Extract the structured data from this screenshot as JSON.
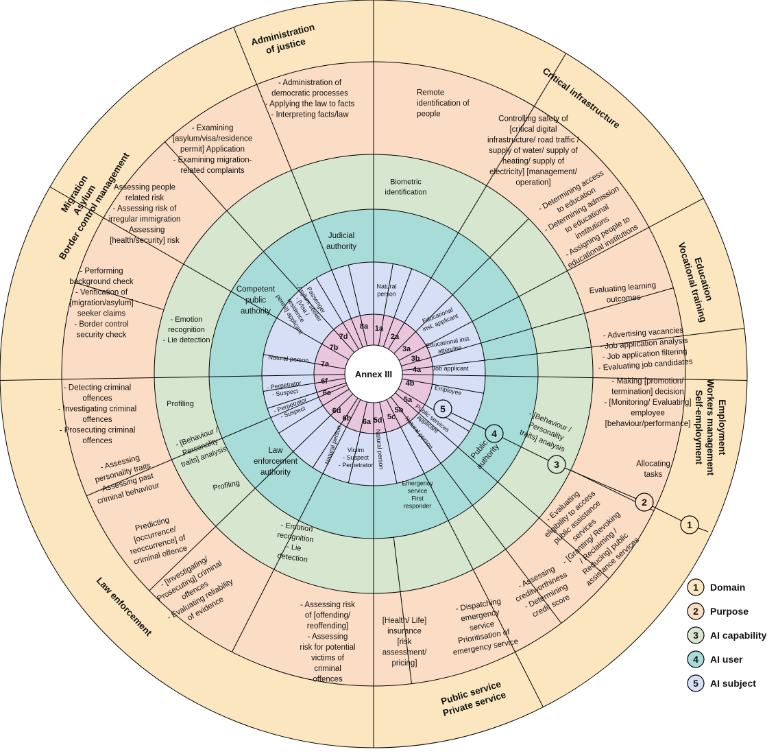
{
  "center": {
    "label": "Annex III"
  },
  "colors": {
    "domain_ring": "#fbe6bf",
    "purpose_ring": "#fbdcc4",
    "capability_ring": "#d7e6cf",
    "user_ring": "#a8dcd9",
    "subject_ring": "#d6dff5",
    "code_ring": "#e9c6dd",
    "line": "#000000"
  },
  "domains": [
    {
      "id": "justice",
      "lines": [
        "Administration",
        "of justice"
      ]
    },
    {
      "id": "critical",
      "lines": [
        "Critical infrastructure"
      ]
    },
    {
      "id": "education",
      "lines": [
        "Education",
        "Vocational training"
      ]
    },
    {
      "id": "employment",
      "lines": [
        "Employment",
        "Workers management",
        "Self-employment"
      ]
    },
    {
      "id": "public",
      "lines": [
        "Public service",
        "Private service"
      ]
    },
    {
      "id": "law",
      "lines": [
        "Law enforcement"
      ]
    },
    {
      "id": "migration",
      "lines": [
        "Migration",
        "Asylum",
        "Border control management"
      ]
    }
  ],
  "purposes": [
    {
      "id": "justice",
      "lines": [
        "- Administration of",
        "democratic processes",
        "- Applying the law to facts",
        "- Interpreting facts/law"
      ]
    },
    {
      "id": "remote",
      "lines": [
        "Remote",
        "identification of",
        "people"
      ]
    },
    {
      "id": "critical",
      "lines": [
        "Controlling safety of",
        "[critical digital",
        "infrastructure/ road traffic /",
        "supply of water/ supply of",
        "heating/ supply of",
        "electricity] [management/",
        "operation]"
      ]
    },
    {
      "id": "edu-access",
      "lines": [
        "- Determining access",
        "to education",
        "- Determining admission",
        "to educational",
        "institutions",
        "- Assigning people to",
        "educational institutions"
      ]
    },
    {
      "id": "edu-eval",
      "lines": [
        "Evaluating learning",
        "outcomes"
      ]
    },
    {
      "id": "recruit",
      "lines": [
        "- Advertising vacancies",
        "- Job application analysis",
        "- Job application filtering",
        "- Evaluating job candidates"
      ]
    },
    {
      "id": "promotion",
      "lines": [
        "- Making [promotion/",
        "termination] decision",
        "- [Monitoring/ Evaluating]",
        "employee",
        "[behaviour/performance]"
      ]
    },
    {
      "id": "tasks",
      "lines": [
        "Allocating",
        "tasks"
      ]
    },
    {
      "id": "assistance",
      "lines": [
        "- Evaluating",
        "eligibility to access",
        "public assistance",
        "services",
        "- [Granting/ Revoking",
        "/ Reclaiming /",
        "Reducing] public",
        "assistance services"
      ]
    },
    {
      "id": "credit",
      "lines": [
        "- Assessing",
        "creditworthiness",
        "- Determining",
        "credit score"
      ]
    },
    {
      "id": "emergency",
      "lines": [
        "- Dispatching",
        "emergency",
        "service",
        "Prioritisation of",
        "emergency service"
      ]
    },
    {
      "id": "insurance",
      "lines": [
        "[Health/ Life]",
        "insurance",
        "[risk",
        "assessment/",
        "pricing]"
      ]
    },
    {
      "id": "risk-offending",
      "lines": [
        "- Assessing risk",
        "of [offending/",
        "reoffending]",
        "- Assessing",
        "risk for potential",
        "victims of",
        "criminal",
        "offences"
      ]
    },
    {
      "id": "investigating",
      "lines": [
        "- [Investigating/",
        "Prosecuting] criminal",
        "offences",
        "- Evaluating reliability",
        "of evidence"
      ]
    },
    {
      "id": "predicting",
      "lines": [
        "Predicting",
        "[occurrence/",
        "reoccurrence] of",
        "criminal offence"
      ]
    },
    {
      "id": "personality",
      "lines": [
        "- Assessing",
        "personality traits",
        "- Assessing past",
        "criminal behaviour"
      ]
    },
    {
      "id": "detecting",
      "lines": [
        "- Detecting criminal",
        "offences",
        "- Investigating criminal",
        "offences",
        "- Prosecuting criminal",
        "offences"
      ]
    },
    {
      "id": "background",
      "lines": [
        "- Performing",
        "background check",
        "- Verification of",
        "[migration/asylum]",
        "seeker claims",
        "-  Border control",
        "security check"
      ]
    },
    {
      "id": "migration-risk",
      "lines": [
        "Assessing people",
        "related risk",
        "- Assessing risk of",
        "irregular immigration",
        "- Assessing",
        "[health/security] risk"
      ]
    },
    {
      "id": "examining",
      "lines": [
        "- Examining",
        "[asylum/visa/residence",
        "permit] Application",
        "- Examining migration-",
        "related complaints"
      ]
    }
  ],
  "capabilities": [
    {
      "id": "biometric",
      "lines": [
        "Biometric",
        "identification"
      ]
    },
    {
      "id": "behaviour-emp",
      "lines": [
        "- [Behaviour /",
        "Personality",
        "traits] analysis"
      ]
    },
    {
      "id": "profiling-law",
      "lines": [
        "Profiling"
      ]
    },
    {
      "id": "behaviour-law",
      "lines": [
        "- [Behaviour /",
        "Personality",
        "traits] analysis"
      ]
    },
    {
      "id": "emotion-law",
      "lines": [
        "- Emotion",
        "recognition",
        "- Lie",
        "detection"
      ]
    },
    {
      "id": "profiling-law2",
      "lines": [
        "Profiling"
      ]
    },
    {
      "id": "emotion-mig",
      "lines": [
        "- Emotion",
        "recognition",
        "- Lie detection"
      ]
    }
  ],
  "users": [
    {
      "id": "judicial",
      "lines": [
        "Judicial",
        "authority"
      ]
    },
    {
      "id": "public",
      "lines": [
        "Public",
        "authority"
      ]
    },
    {
      "id": "law",
      "lines": [
        "Law",
        "enforcement",
        "authority"
      ]
    },
    {
      "id": "competent",
      "lines": [
        "Competent",
        "public",
        "authority"
      ]
    }
  ],
  "subjects": [
    {
      "id": "natural-1a",
      "lines": [
        "Natural",
        "person"
      ]
    },
    {
      "id": "edu-applicant",
      "lines": [
        "Educational",
        "inst. applicant"
      ]
    },
    {
      "id": "edu-attendee",
      "lines": [
        "Educational inst.",
        "attendee"
      ]
    },
    {
      "id": "job-applicant",
      "lines": [
        "Job applicant"
      ]
    },
    {
      "id": "employee",
      "lines": [
        "Employee"
      ]
    },
    {
      "id": "ps-applicant",
      "lines": [
        "Public services",
        "applicant"
      ]
    },
    {
      "id": "natural-5b",
      "lines": [
        "Natural person"
      ]
    },
    {
      "id": "emergency",
      "lines": [
        "Emergency",
        "service",
        "First",
        "responder"
      ]
    },
    {
      "id": "natural-5d",
      "lines": [
        "Natural person"
      ]
    },
    {
      "id": "victim",
      "lines": [
        "Victim",
        "- Suspect",
        "- Perpetrator"
      ]
    },
    {
      "id": "natural-6b",
      "lines": [
        "Natural person"
      ]
    },
    {
      "id": "perp-6e",
      "lines": [
        "- Perpetrator",
        "- Suspect"
      ]
    },
    {
      "id": "perp-6f",
      "lines": [
        "- Perpetrator",
        "- Suspect"
      ]
    },
    {
      "id": "natural-7a",
      "lines": [
        "Natural person"
      ]
    },
    {
      "id": "passenger",
      "lines": [
        "- Passenger",
        "- Asylum seeker",
        "- [Visa /",
        "residence",
        "permit] applicant"
      ]
    }
  ],
  "codes": [
    "8a",
    "1a",
    "2a",
    "3a",
    "3b",
    "4a",
    "4b",
    "5a",
    "5b",
    "5c",
    "5d",
    "6a",
    "6b",
    "6d",
    "6e",
    "6f",
    "7a",
    "7b",
    "7d"
  ],
  "legend": [
    {
      "num": "1",
      "label": "Domain",
      "color": "#fbe6bf"
    },
    {
      "num": "2",
      "label": "Purpose",
      "color": "#fbdcc4"
    },
    {
      "num": "3",
      "label": "AI capability",
      "color": "#d7e6cf"
    },
    {
      "num": "4",
      "label": "AI user",
      "color": "#a8dcd9"
    },
    {
      "num": "5",
      "label": "AI subject",
      "color": "#d6dff5"
    }
  ]
}
